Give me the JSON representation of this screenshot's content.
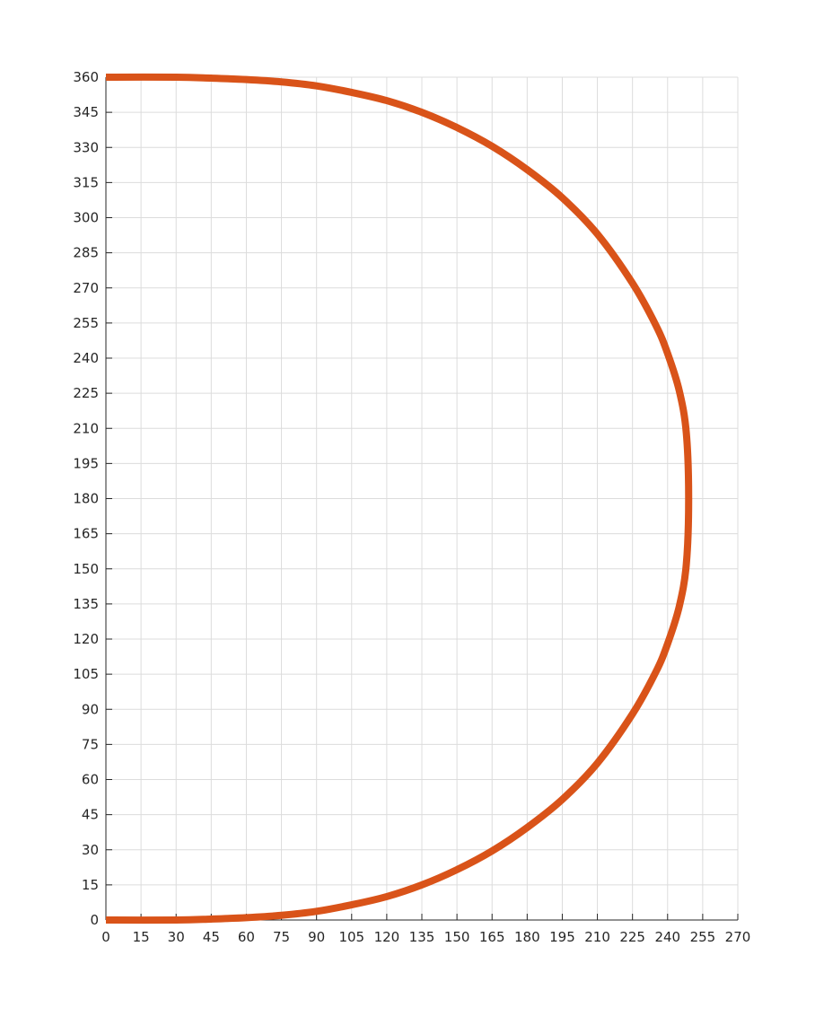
{
  "chart_data": {
    "type": "line",
    "title": "",
    "xlabel": "",
    "ylabel": "",
    "xlim": [
      0,
      270
    ],
    "ylim": [
      0,
      360
    ],
    "xticks": [
      0,
      15,
      30,
      45,
      60,
      75,
      90,
      105,
      120,
      135,
      150,
      165,
      180,
      195,
      210,
      225,
      240,
      255,
      270
    ],
    "yticks": [
      0,
      15,
      30,
      45,
      60,
      75,
      90,
      105,
      120,
      135,
      150,
      165,
      180,
      195,
      210,
      225,
      240,
      255,
      270,
      285,
      300,
      315,
      330,
      345,
      360
    ],
    "grid": true,
    "legend": "none",
    "series": [
      {
        "color": "#d95319",
        "x": [
          0,
          30,
          45,
          60,
          75,
          90,
          105,
          120,
          135,
          150,
          165,
          180,
          195,
          210,
          225,
          235,
          240,
          245,
          248,
          249,
          248,
          245,
          240,
          235,
          225,
          210,
          195,
          180,
          165,
          150,
          135,
          120,
          105,
          90,
          75,
          60,
          45,
          30,
          0
        ],
        "y": [
          0,
          0,
          0.4,
          1,
          2,
          3.7,
          6.5,
          10,
          15,
          21.5,
          29.5,
          39.5,
          51.5,
          67,
          88,
          106,
          118,
          134,
          152,
          180,
          208,
          226,
          242,
          254,
          272,
          293,
          308.5,
          320.5,
          330.5,
          338.5,
          345,
          350,
          353.5,
          356.3,
          358,
          359,
          359.6,
          360,
          360
        ]
      }
    ]
  }
}
